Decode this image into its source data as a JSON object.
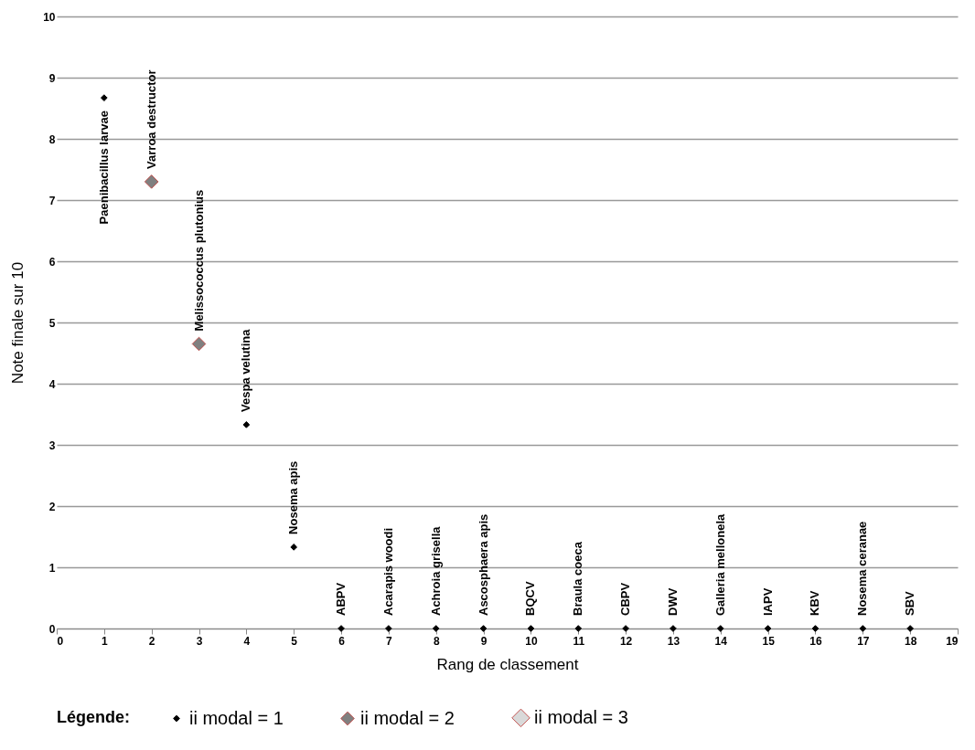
{
  "chart_data": {
    "type": "scatter",
    "xlabel": "Rang de classement",
    "ylabel": "Note finale sur 10",
    "legend_title": "Légende:",
    "xlim": [
      0,
      19
    ],
    "xticks": [
      0,
      1,
      2,
      3,
      4,
      5,
      6,
      7,
      8,
      9,
      10,
      11,
      12,
      13,
      14,
      15,
      16,
      17,
      18,
      19
    ],
    "ylim": [
      0,
      10
    ],
    "yticks": [
      0,
      1,
      2,
      3,
      4,
      5,
      6,
      7,
      8,
      9,
      10
    ],
    "grid": "y",
    "legend": "bottom",
    "marker": "diamond",
    "series": [
      {
        "name": "ii modal = 1",
        "color": "#000000",
        "x": [
          1,
          4,
          5,
          6,
          7,
          8,
          9,
          10,
          11,
          12,
          13,
          14,
          15,
          16,
          17,
          18
        ],
        "values": [
          8.67,
          3.33,
          1.33,
          0,
          0,
          0,
          0,
          0,
          0,
          0,
          0,
          0,
          0,
          0,
          0,
          0
        ]
      },
      {
        "name": "ii modal = 2",
        "color": "#808080",
        "x": [
          2,
          3
        ],
        "values": [
          7.3,
          4.65
        ]
      },
      {
        "name": "ii modal = 3",
        "color": "#d9d9d9"
      }
    ],
    "annotations": [
      {
        "text": "Paenibacillus  larvae",
        "x": 1,
        "y": 8.67
      },
      {
        "text": "Varroa destructor",
        "x": 2,
        "y": 7.3
      },
      {
        "text": "Melissococcus  plutonius",
        "x": 3,
        "y": 4.65
      },
      {
        "text": "Vespa velutina",
        "x": 4,
        "y": 3.33
      },
      {
        "text": "Nosema apis",
        "x": 5,
        "y": 1.33
      },
      {
        "text": "ABPV",
        "x": 6,
        "y": 0
      },
      {
        "text": "Acarapis woodi",
        "x": 7,
        "y": 0
      },
      {
        "text": "Achroia grisella",
        "x": 8,
        "y": 0
      },
      {
        "text": "Ascosphaera apis",
        "x": 9,
        "y": 0
      },
      {
        "text": "BQCV",
        "x": 10,
        "y": 0
      },
      {
        "text": "Braula coeca",
        "x": 11,
        "y": 0
      },
      {
        "text": "CBPV",
        "x": 12,
        "y": 0
      },
      {
        "text": "DWV",
        "x": 13,
        "y": 0
      },
      {
        "text": "Galleria mellonela",
        "x": 14,
        "y": 0
      },
      {
        "text": "IAPV",
        "x": 15,
        "y": 0
      },
      {
        "text": "KBV",
        "x": 16,
        "y": 0
      },
      {
        "text": "Nosema ceranae",
        "x": 17,
        "y": 0
      },
      {
        "text": "SBV",
        "x": 18,
        "y": 0
      }
    ]
  }
}
